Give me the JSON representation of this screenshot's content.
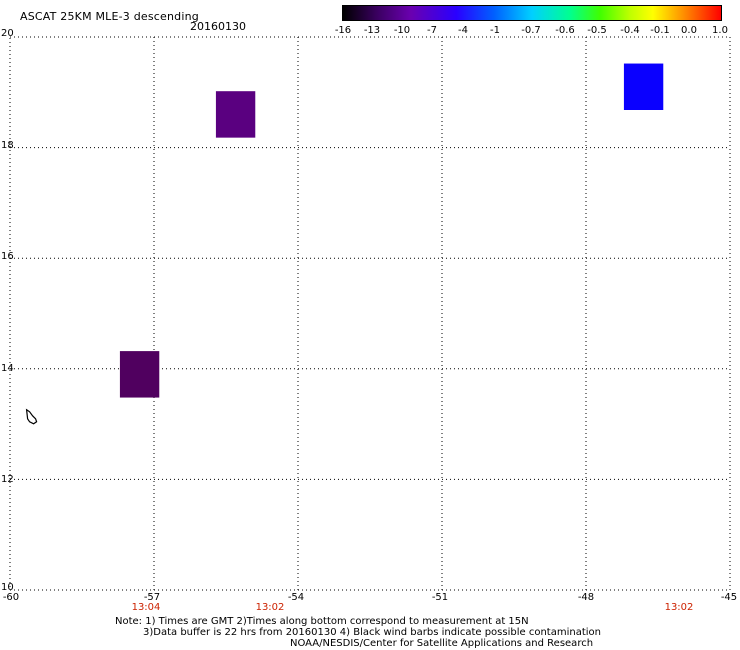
{
  "header": {
    "title": "ASCAT 25KM MLE-3 descending",
    "date": "20160130"
  },
  "colorbar": {
    "labels": [
      "-16",
      "-13",
      "-10",
      "-7",
      "-4",
      "-1",
      "-0.7",
      "-0.6",
      "-0.5",
      "-0.4",
      "-0.1",
      "0.0",
      "1.0"
    ]
  },
  "axes": {
    "y_labels": [
      "20",
      "18",
      "16",
      "14",
      "12",
      "10"
    ],
    "x_labels": [
      "-60",
      "-57",
      "-54",
      "-51",
      "-48",
      "-45"
    ],
    "time_labels": [
      "13:04",
      "13:02",
      "13:02"
    ]
  },
  "notes": {
    "line1": "Note: 1) Times are GMT 2)Times along bottom correspond to measurement at 15N",
    "line2": "3)Data buffer is 22 hrs from 20160130 4) Black wind barbs indicate possible contamination",
    "line3": "NOAA/NESDIS/Center for Satellite Applications and Research"
  },
  "map": {
    "lon_range": [
      -60,
      -45
    ],
    "lat_range": [
      10,
      20
    ],
    "grid": "dotted",
    "cells": [
      {
        "name": "cell-purple-north",
        "lon": -55.3,
        "lat": 18.6,
        "color": "#5a0080"
      },
      {
        "name": "cell-blue-east",
        "lon": -46.8,
        "lat": 19.1,
        "color": "#0a00ff"
      },
      {
        "name": "cell-purple-south",
        "lon": -57.3,
        "lat": 13.9,
        "color": "#50005f"
      }
    ],
    "island": {
      "name": "barbados-outline",
      "lon": -59.55,
      "lat": 13.15
    }
  }
}
